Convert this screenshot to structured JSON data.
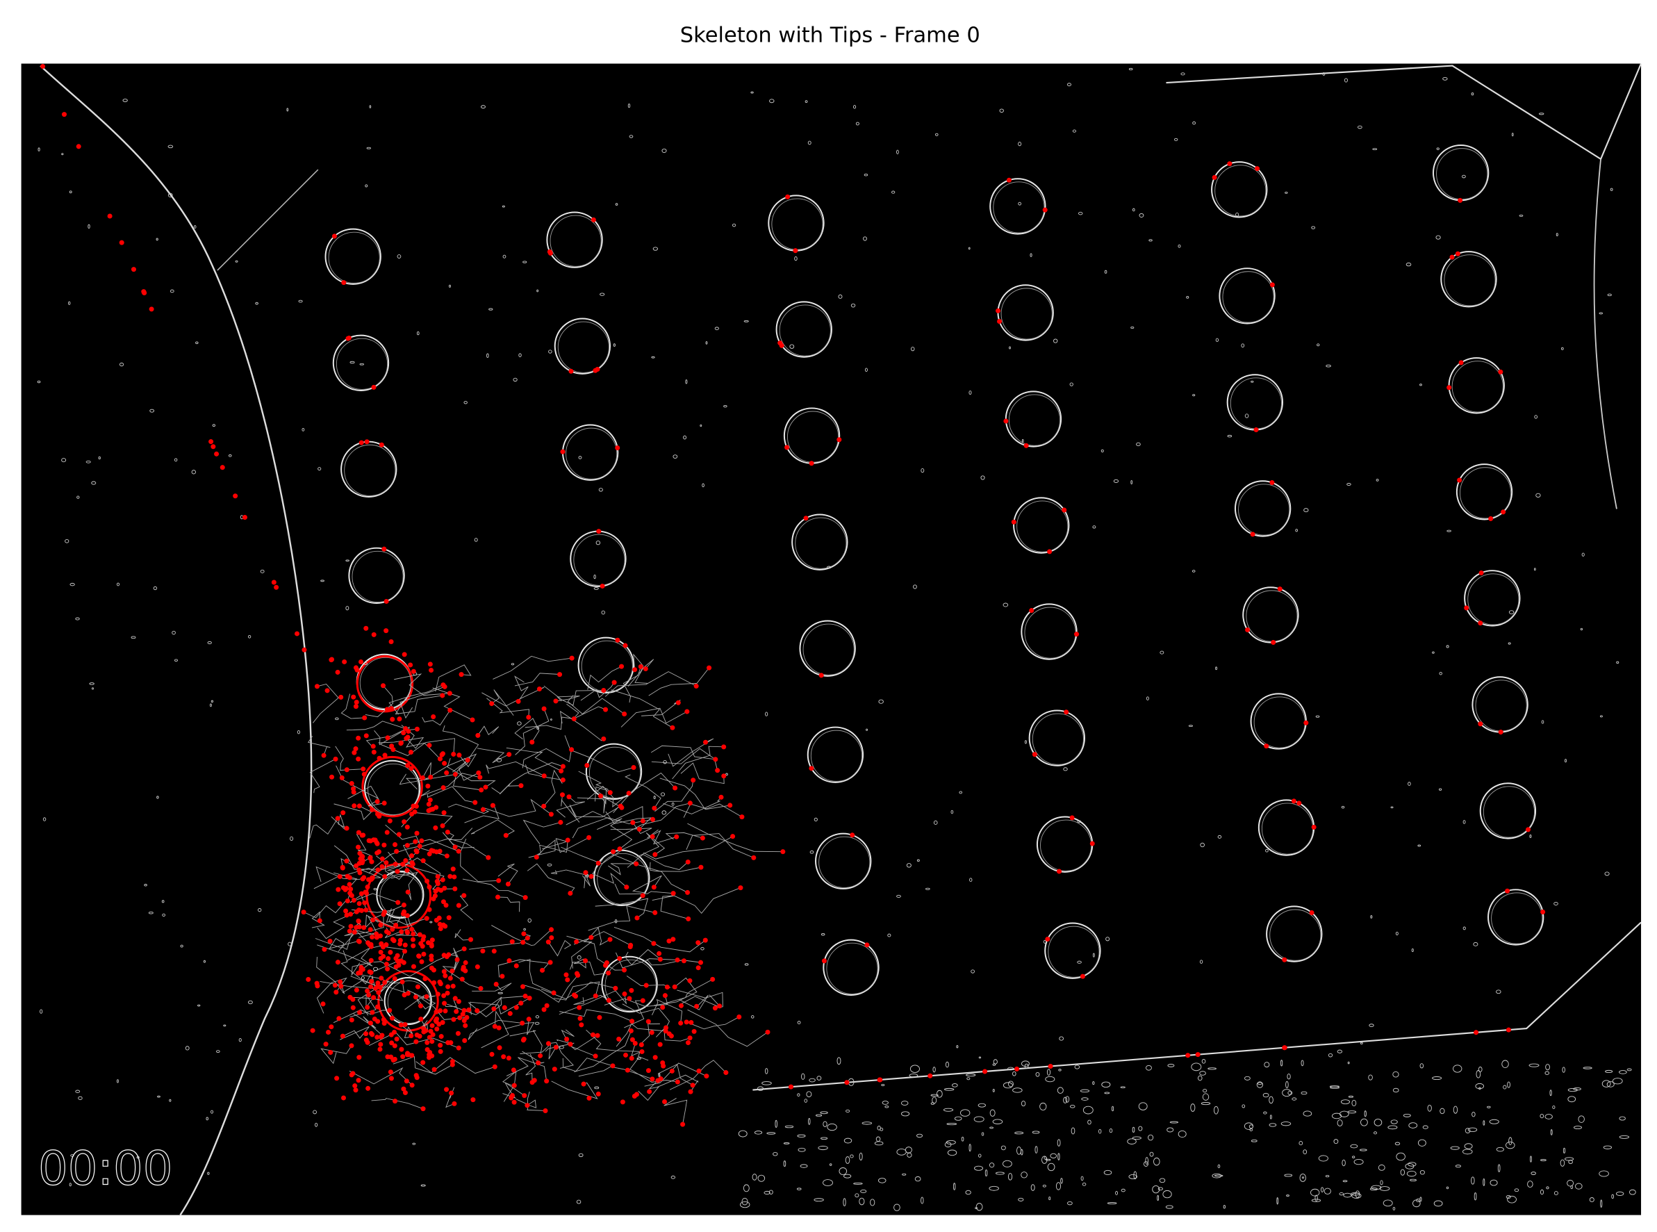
{
  "title": "Skeleton with Tips - Frame 0",
  "image": {
    "timestamp": "00:00"
  }
}
